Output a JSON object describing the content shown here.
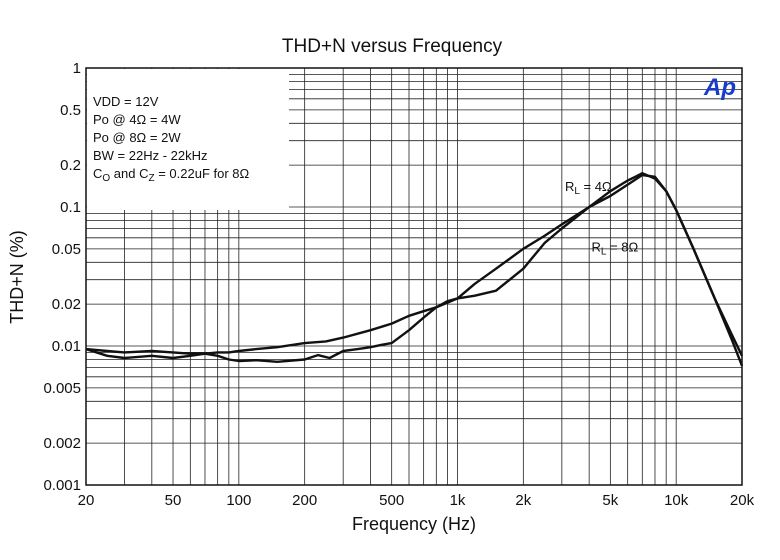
{
  "chart_data": {
    "type": "line",
    "title": "THD+N versus Frequency",
    "xlabel": "Frequency (Hz)",
    "ylabel": "THD+N (%)",
    "x_scale": "log",
    "y_scale": "log",
    "xlim": [
      20,
      20000
    ],
    "ylim": [
      0.001,
      1
    ],
    "grid": true,
    "x_ticks": [
      {
        "value": 20,
        "label": "20"
      },
      {
        "value": 50,
        "label": "50"
      },
      {
        "value": 100,
        "label": "100"
      },
      {
        "value": 200,
        "label": "200"
      },
      {
        "value": 500,
        "label": "500"
      },
      {
        "value": 1000,
        "label": "1k"
      },
      {
        "value": 2000,
        "label": "2k"
      },
      {
        "value": 5000,
        "label": "5k"
      },
      {
        "value": 10000,
        "label": "10k"
      },
      {
        "value": 20000,
        "label": "20k"
      }
    ],
    "y_ticks": [
      {
        "value": 0.001,
        "label": "0.001"
      },
      {
        "value": 0.002,
        "label": "0.002"
      },
      {
        "value": 0.005,
        "label": "0.005"
      },
      {
        "value": 0.01,
        "label": "0.01"
      },
      {
        "value": 0.02,
        "label": "0.02"
      },
      {
        "value": 0.05,
        "label": "0.05"
      },
      {
        "value": 0.1,
        "label": "0.1"
      },
      {
        "value": 0.2,
        "label": "0.2"
      },
      {
        "value": 0.5,
        "label": "0.5"
      },
      {
        "value": 1,
        "label": "1"
      }
    ],
    "conditions": [
      "VDD = 12V",
      " Po @ 4Ω = 4W",
      " Po @ 8Ω = 2W",
      "BW = 22Hz - 22kHz"
    ],
    "condition_cap": {
      "c1": "C",
      "c1_sub": "O",
      "mid": " and C",
      "c2_sub": "Z",
      "rest": " = 0.22uF for 8Ω"
    },
    "logo": "Ap",
    "logo_color": "#1a3ccc",
    "series": [
      {
        "name_main": "R",
        "name_sub": "L",
        "name_rest": " = 4Ω",
        "x": [
          20,
          25,
          30,
          40,
          50,
          60,
          70,
          80,
          90,
          100,
          120,
          150,
          200,
          250,
          300,
          400,
          500,
          600,
          700,
          800,
          900,
          1000,
          1200,
          1500,
          2000,
          2500,
          3000,
          4000,
          5000,
          6000,
          7000,
          8000,
          9000,
          10000,
          12000,
          15000,
          18000,
          20000
        ],
        "values": [
          0.0095,
          0.0092,
          0.009,
          0.0092,
          0.009,
          0.0088,
          0.0088,
          0.009,
          0.009,
          0.0092,
          0.0095,
          0.0098,
          0.0105,
          0.0108,
          0.0115,
          0.013,
          0.0145,
          0.0165,
          0.0178,
          0.019,
          0.0205,
          0.022,
          0.028,
          0.036,
          0.05,
          0.062,
          0.075,
          0.1,
          0.12,
          0.145,
          0.17,
          0.165,
          0.13,
          0.095,
          0.05,
          0.022,
          0.012,
          0.0085
        ]
      },
      {
        "name_main": "R",
        "name_sub": "L",
        "name_rest": " = 8Ω",
        "x": [
          20,
          25,
          30,
          40,
          50,
          60,
          70,
          80,
          90,
          100,
          120,
          150,
          200,
          230,
          260,
          300,
          350,
          400,
          450,
          500,
          600,
          700,
          800,
          900,
          1000,
          1200,
          1500,
          2000,
          2500,
          3000,
          4000,
          5000,
          6000,
          6500,
          7000,
          8000,
          9000,
          10000,
          12000,
          15000,
          18000,
          20000
        ],
        "values": [
          0.0095,
          0.0085,
          0.0082,
          0.0085,
          0.0082,
          0.0085,
          0.0088,
          0.0085,
          0.008,
          0.0078,
          0.0079,
          0.0077,
          0.008,
          0.0086,
          0.0082,
          0.0092,
          0.0095,
          0.0098,
          0.0102,
          0.0105,
          0.013,
          0.016,
          0.019,
          0.021,
          0.022,
          0.023,
          0.025,
          0.036,
          0.055,
          0.07,
          0.1,
          0.13,
          0.155,
          0.165,
          0.175,
          0.16,
          0.13,
          0.095,
          0.05,
          0.022,
          0.011,
          0.0072
        ]
      }
    ],
    "series_label_positions": [
      {
        "x": 3100,
        "y": 0.13
      },
      {
        "x": 4100,
        "y": 0.048
      }
    ]
  }
}
